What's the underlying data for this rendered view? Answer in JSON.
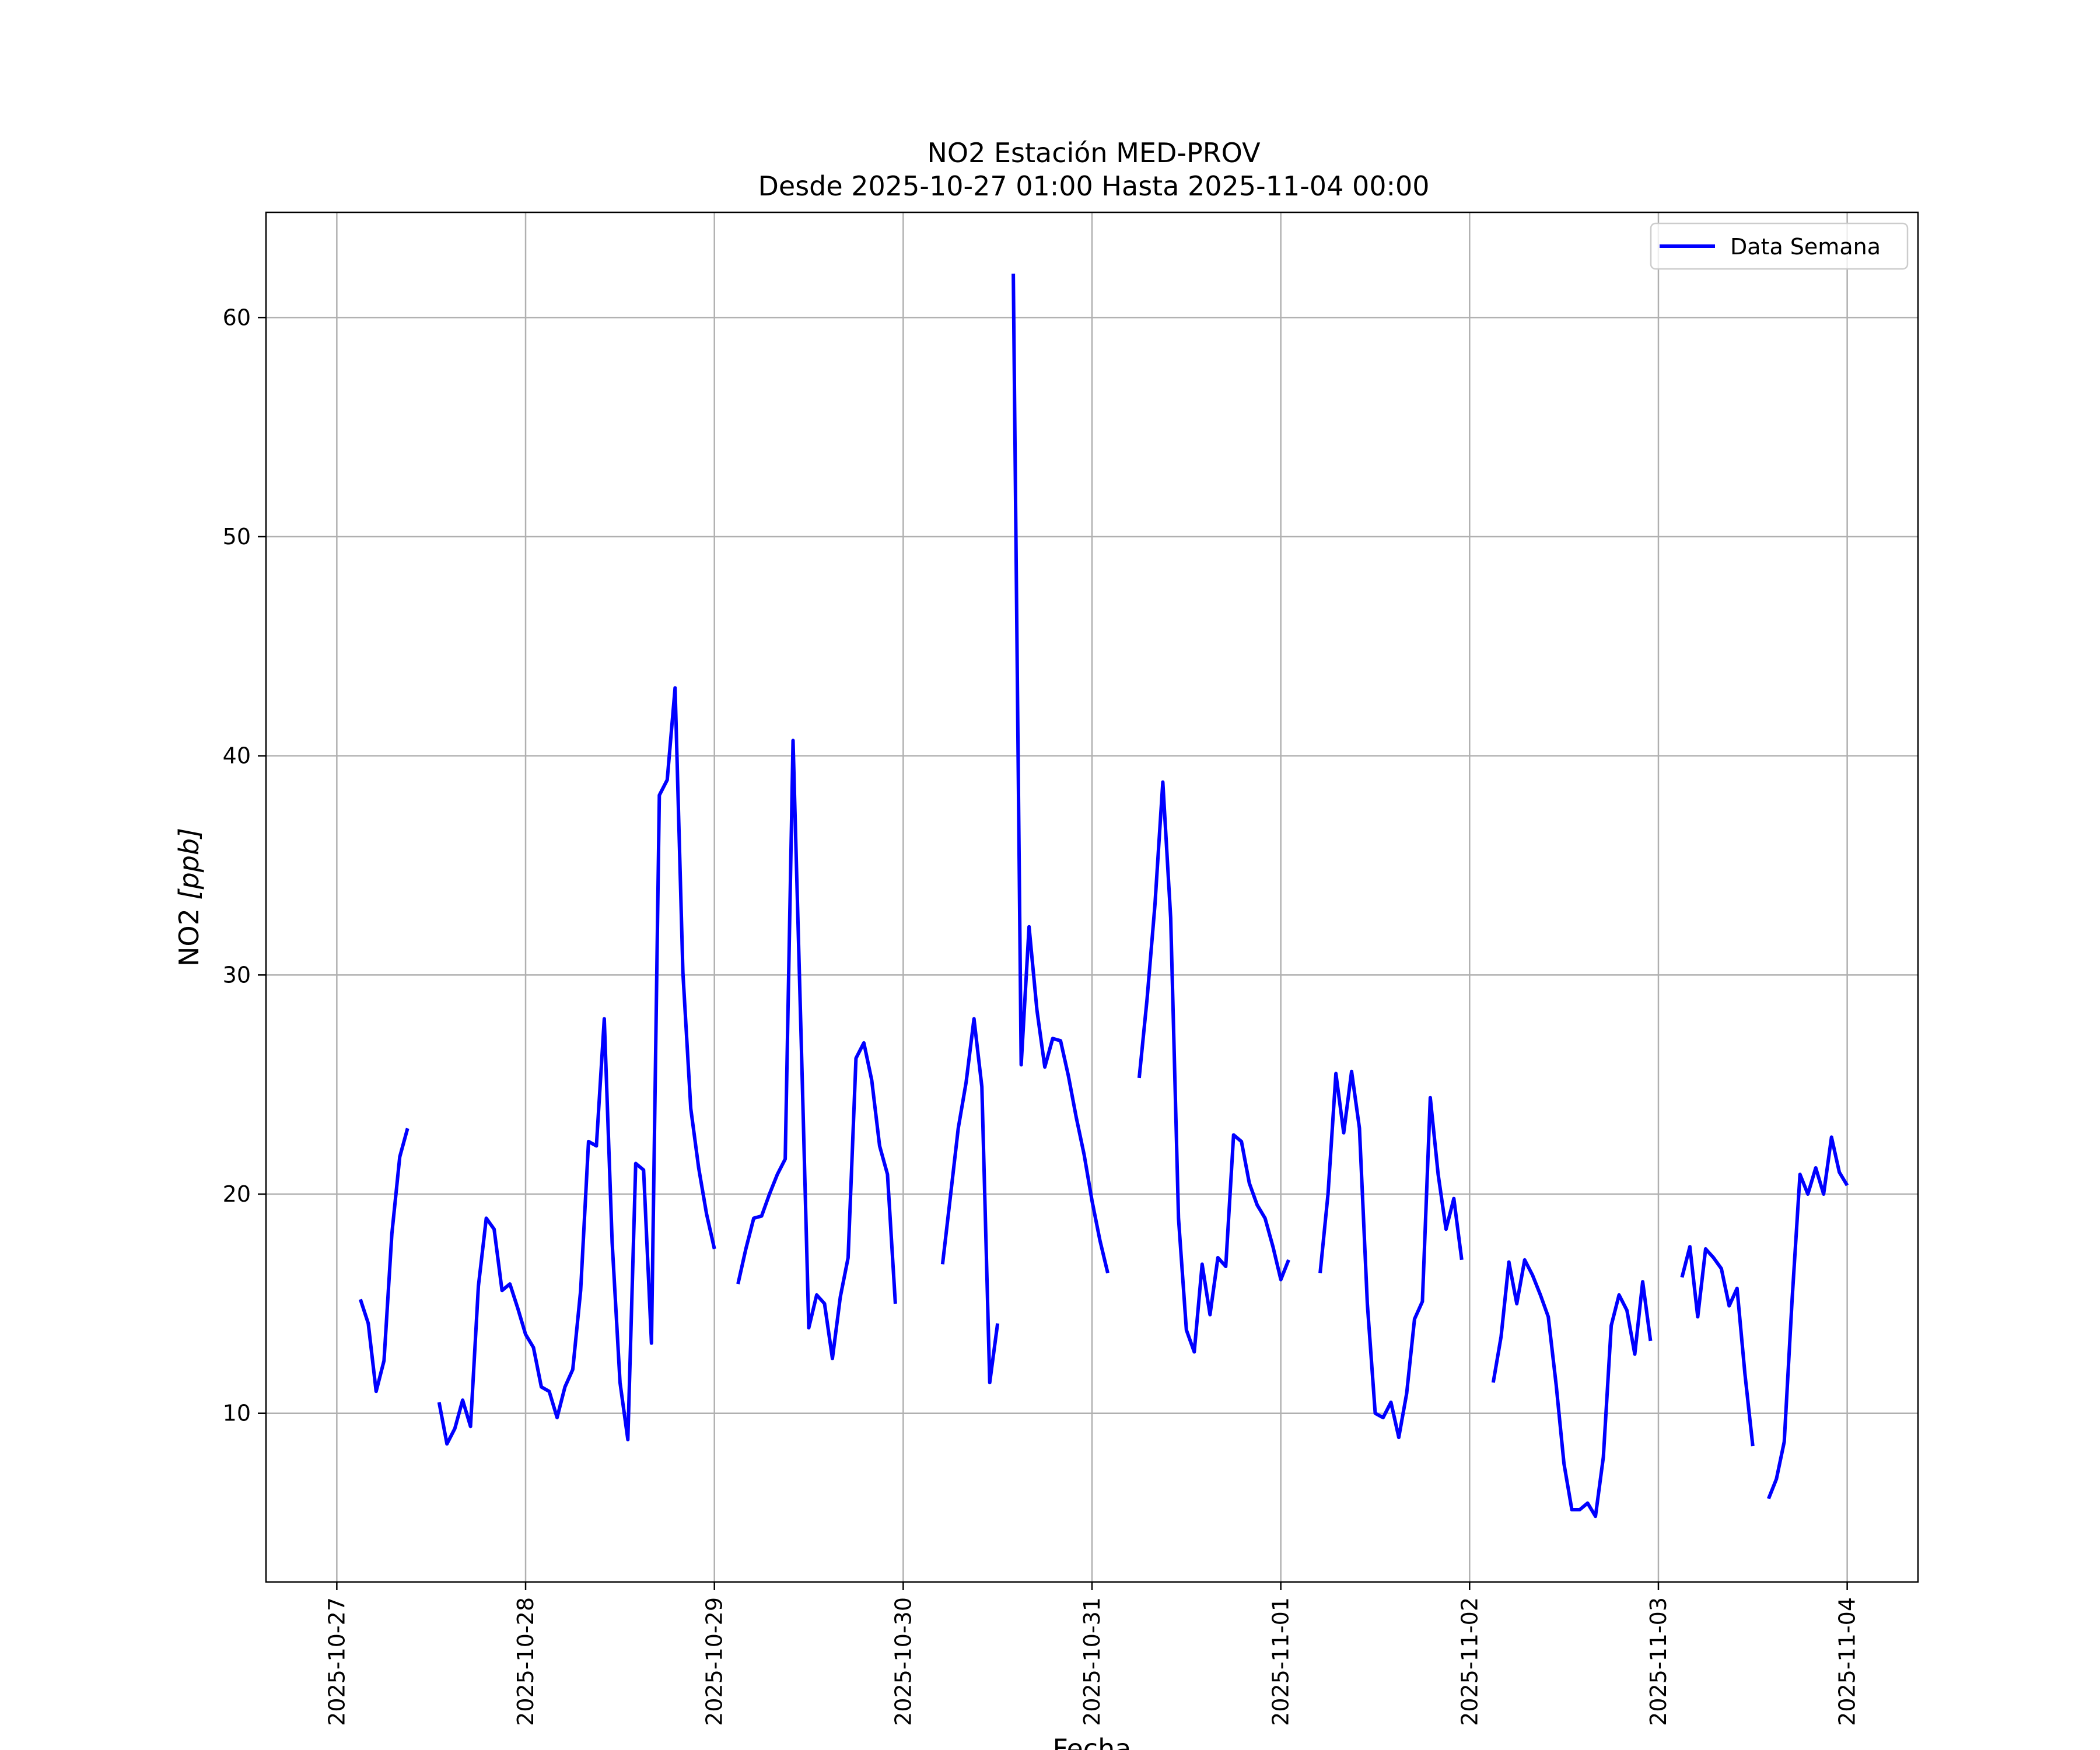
{
  "chart_data": {
    "type": "line",
    "title": "NO2 Estación MED-PROV",
    "subtitle": "Desde 2025-10-27 01:00 Hasta 2025-11-04 00:00",
    "xlabel": "Fecha",
    "ylabel": "NO2 [ppb]",
    "ylabel_prefix": "NO2 ",
    "ylabel_unit": "[ppb]",
    "grid": true,
    "legend": "top-right",
    "xlim": [
      "2025-10-26 15:00",
      "2025-11-04 09:00"
    ],
    "ylim": [
      2.3,
      64.8
    ],
    "x_ticks": [
      "2025-10-27",
      "2025-10-28",
      "2025-10-29",
      "2025-10-30",
      "2025-10-31",
      "2025-11-01",
      "2025-11-02",
      "2025-11-03",
      "2025-11-04"
    ],
    "y_ticks": [
      10,
      20,
      30,
      40,
      50,
      60
    ],
    "series": [
      {
        "name": "Data Semana",
        "color": "#0000ff",
        "segments": [
          [
            [
              "2025-10-27 03:00",
              15.2
            ],
            [
              "2025-10-27 04:00",
              14.1
            ],
            [
              "2025-10-27 05:00",
              11.0
            ],
            [
              "2025-10-27 06:00",
              12.4
            ],
            [
              "2025-10-27 07:00",
              18.2
            ],
            [
              "2025-10-27 08:00",
              21.7
            ],
            [
              "2025-10-27 09:00",
              23.0
            ]
          ],
          [
            [
              "2025-10-27 13:00",
              10.5
            ],
            [
              "2025-10-27 14:00",
              8.6
            ],
            [
              "2025-10-27 15:00",
              9.3
            ],
            [
              "2025-10-27 16:00",
              10.6
            ],
            [
              "2025-10-27 17:00",
              9.4
            ],
            [
              "2025-10-27 18:00",
              15.8
            ],
            [
              "2025-10-27 19:00",
              18.9
            ],
            [
              "2025-10-27 20:00",
              18.4
            ],
            [
              "2025-10-27 21:00",
              15.6
            ],
            [
              "2025-10-27 22:00",
              15.9
            ],
            [
              "2025-10-27 23:00",
              14.8
            ],
            [
              "2025-10-28 00:00",
              13.6
            ],
            [
              "2025-10-28 01:00",
              13.0
            ],
            [
              "2025-10-28 02:00",
              11.2
            ],
            [
              "2025-10-28 03:00",
              11.0
            ],
            [
              "2025-10-28 04:00",
              9.8
            ],
            [
              "2025-10-28 05:00",
              11.2
            ],
            [
              "2025-10-28 06:00",
              12.0
            ],
            [
              "2025-10-28 07:00",
              15.6
            ],
            [
              "2025-10-28 08:00",
              22.4
            ],
            [
              "2025-10-28 09:00",
              22.2
            ],
            [
              "2025-10-28 10:00",
              28.0
            ],
            [
              "2025-10-28 11:00",
              17.8
            ],
            [
              "2025-10-28 12:00",
              11.4
            ],
            [
              "2025-10-28 13:00",
              8.8
            ],
            [
              "2025-10-28 14:00",
              21.4
            ],
            [
              "2025-10-28 15:00",
              21.1
            ],
            [
              "2025-10-28 16:00",
              13.2
            ],
            [
              "2025-10-28 17:00",
              38.2
            ],
            [
              "2025-10-28 18:00",
              38.9
            ],
            [
              "2025-10-28 19:00",
              43.1
            ],
            [
              "2025-10-28 20:00",
              30.1
            ],
            [
              "2025-10-28 21:00",
              23.9
            ],
            [
              "2025-10-28 22:00",
              21.2
            ],
            [
              "2025-10-28 23:00",
              19.1
            ],
            [
              "2025-10-29 00:00",
              17.5
            ]
          ],
          [
            [
              "2025-10-29 03:00",
              15.9
            ],
            [
              "2025-10-29 04:00",
              17.5
            ],
            [
              "2025-10-29 05:00",
              18.9
            ],
            [
              "2025-10-29 06:00",
              19.0
            ],
            [
              "2025-10-29 07:00",
              20.0
            ],
            [
              "2025-10-29 08:00",
              20.9
            ],
            [
              "2025-10-29 09:00",
              21.6
            ],
            [
              "2025-10-29 10:00",
              40.7
            ],
            [
              "2025-10-29 11:00",
              27.5
            ],
            [
              "2025-10-29 12:00",
              13.9
            ],
            [
              "2025-10-29 13:00",
              15.4
            ],
            [
              "2025-10-29 14:00",
              15.0
            ],
            [
              "2025-10-29 15:00",
              12.5
            ],
            [
              "2025-10-29 16:00",
              15.3
            ],
            [
              "2025-10-29 17:00",
              17.1
            ],
            [
              "2025-10-29 18:00",
              26.2
            ],
            [
              "2025-10-29 19:00",
              26.9
            ],
            [
              "2025-10-29 20:00",
              25.2
            ],
            [
              "2025-10-29 21:00",
              22.2
            ],
            [
              "2025-10-29 22:00",
              20.9
            ],
            [
              "2025-10-29 23:00",
              15.0
            ]
          ],
          [
            [
              "2025-10-30 05:00",
              16.8
            ],
            [
              "2025-10-30 06:00",
              19.9
            ],
            [
              "2025-10-30 07:00",
              23.0
            ],
            [
              "2025-10-30 08:00",
              25.1
            ],
            [
              "2025-10-30 09:00",
              28.0
            ],
            [
              "2025-10-30 10:00",
              24.9
            ],
            [
              "2025-10-30 11:00",
              11.4
            ],
            [
              "2025-10-30 12:00",
              14.1
            ]
          ],
          [
            [
              "2025-10-30 14:00",
              62.0
            ],
            [
              "2025-10-30 15:00",
              25.9
            ],
            [
              "2025-10-30 16:00",
              32.2
            ],
            [
              "2025-10-30 17:00",
              28.4
            ],
            [
              "2025-10-30 18:00",
              25.8
            ],
            [
              "2025-10-30 19:00",
              27.1
            ],
            [
              "2025-10-30 20:00",
              27.0
            ],
            [
              "2025-10-30 21:00",
              25.4
            ],
            [
              "2025-10-30 22:00",
              23.5
            ],
            [
              "2025-10-30 23:00",
              21.8
            ],
            [
              "2025-10-31 00:00",
              19.7
            ],
            [
              "2025-10-31 01:00",
              17.9
            ],
            [
              "2025-10-31 02:00",
              16.4
            ]
          ],
          [
            [
              "2025-10-31 06:00",
              25.3
            ],
            [
              "2025-10-31 07:00",
              28.9
            ],
            [
              "2025-10-31 08:00",
              33.2
            ],
            [
              "2025-10-31 09:00",
              38.8
            ],
            [
              "2025-10-31 10:00",
              32.6
            ],
            [
              "2025-10-31 11:00",
              18.9
            ],
            [
              "2025-10-31 12:00",
              13.8
            ],
            [
              "2025-10-31 13:00",
              12.8
            ],
            [
              "2025-10-31 14:00",
              16.8
            ],
            [
              "2025-10-31 15:00",
              14.5
            ],
            [
              "2025-10-31 16:00",
              17.1
            ],
            [
              "2025-10-31 17:00",
              16.7
            ],
            [
              "2025-10-31 18:00",
              22.7
            ],
            [
              "2025-10-31 19:00",
              22.4
            ],
            [
              "2025-10-31 20:00",
              20.5
            ],
            [
              "2025-10-31 21:00",
              19.5
            ],
            [
              "2025-10-31 22:00",
              18.9
            ],
            [
              "2025-10-31 23:00",
              17.6
            ],
            [
              "2025-11-01 00:00",
              16.1
            ],
            [
              "2025-11-01 01:00",
              17.0
            ]
          ],
          [
            [
              "2025-11-01 05:00",
              16.4
            ],
            [
              "2025-11-01 06:00",
              20.0
            ],
            [
              "2025-11-01 07:00",
              25.5
            ],
            [
              "2025-11-01 08:00",
              22.8
            ],
            [
              "2025-11-01 09:00",
              25.6
            ],
            [
              "2025-11-01 10:00",
              23.0
            ],
            [
              "2025-11-01 11:00",
              15.0
            ],
            [
              "2025-11-01 12:00",
              10.0
            ],
            [
              "2025-11-01 13:00",
              9.8
            ],
            [
              "2025-11-01 14:00",
              10.5
            ],
            [
              "2025-11-01 15:00",
              8.9
            ],
            [
              "2025-11-01 16:00",
              10.9
            ],
            [
              "2025-11-01 17:00",
              14.3
            ],
            [
              "2025-11-01 18:00",
              15.1
            ],
            [
              "2025-11-01 19:00",
              24.4
            ],
            [
              "2025-11-01 20:00",
              20.9
            ],
            [
              "2025-11-01 21:00",
              18.4
            ],
            [
              "2025-11-01 22:00",
              19.8
            ],
            [
              "2025-11-01 23:00",
              17.0
            ]
          ],
          [
            [
              "2025-11-02 03:00",
              11.4
            ],
            [
              "2025-11-02 04:00",
              13.5
            ],
            [
              "2025-11-02 05:00",
              16.9
            ],
            [
              "2025-11-02 06:00",
              15.0
            ],
            [
              "2025-11-02 07:00",
              17.0
            ],
            [
              "2025-11-02 08:00",
              16.3
            ],
            [
              "2025-11-02 09:00",
              15.4
            ],
            [
              "2025-11-02 10:00",
              14.4
            ],
            [
              "2025-11-02 11:00",
              11.3
            ],
            [
              "2025-11-02 12:00",
              7.7
            ],
            [
              "2025-11-02 13:00",
              5.6
            ],
            [
              "2025-11-02 14:00",
              5.6
            ],
            [
              "2025-11-02 15:00",
              5.9
            ],
            [
              "2025-11-02 16:00",
              5.3
            ],
            [
              "2025-11-02 17:00",
              8.0
            ],
            [
              "2025-11-02 18:00",
              14.0
            ],
            [
              "2025-11-02 19:00",
              15.4
            ],
            [
              "2025-11-02 20:00",
              14.7
            ],
            [
              "2025-11-02 21:00",
              12.7
            ],
            [
              "2025-11-02 22:00",
              16.0
            ],
            [
              "2025-11-02 23:00",
              13.3
            ]
          ],
          [
            [
              "2025-11-03 03:00",
              16.2
            ],
            [
              "2025-11-03 04:00",
              17.6
            ],
            [
              "2025-11-03 05:00",
              14.4
            ],
            [
              "2025-11-03 06:00",
              17.5
            ],
            [
              "2025-11-03 07:00",
              17.1
            ],
            [
              "2025-11-03 08:00",
              16.6
            ],
            [
              "2025-11-03 09:00",
              14.9
            ],
            [
              "2025-11-03 10:00",
              15.7
            ],
            [
              "2025-11-03 11:00",
              11.8
            ],
            [
              "2025-11-03 12:00",
              8.5
            ]
          ],
          [
            [
              "2025-11-03 14:00",
              6.1
            ],
            [
              "2025-11-03 15:00",
              7.0
            ],
            [
              "2025-11-03 16:00",
              8.7
            ],
            [
              "2025-11-03 17:00",
              15.2
            ],
            [
              "2025-11-03 18:00",
              20.9
            ],
            [
              "2025-11-03 19:00",
              20.0
            ],
            [
              "2025-11-03 20:00",
              21.2
            ],
            [
              "2025-11-03 21:00",
              20.0
            ],
            [
              "2025-11-03 22:00",
              22.6
            ],
            [
              "2025-11-03 23:00",
              21.0
            ],
            [
              "2025-11-04 00:00",
              20.4
            ]
          ]
        ]
      }
    ]
  }
}
